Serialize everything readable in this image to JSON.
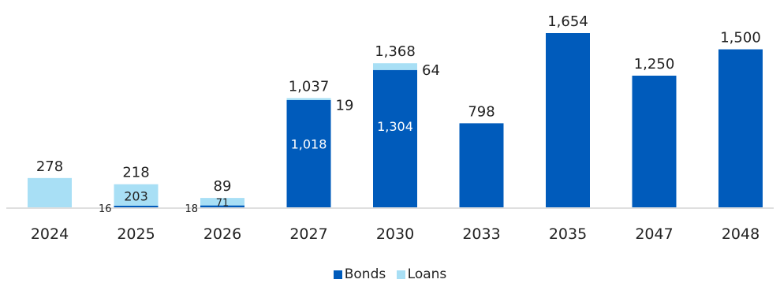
{
  "chart_data": {
    "type": "bar",
    "stacked": true,
    "categories": [
      "2024",
      "2025",
      "2026",
      "2027",
      "2030",
      "2033",
      "2035",
      "2047",
      "2048"
    ],
    "series": [
      {
        "name": "Bonds",
        "color": "#005bbb",
        "values": [
          0,
          16,
          18,
          1018,
          1304,
          798,
          1654,
          1250,
          1500
        ]
      },
      {
        "name": "Loans",
        "color": "#a8dff5",
        "values": [
          278,
          203,
          71,
          19,
          64,
          0,
          0,
          0,
          0
        ]
      }
    ],
    "totals": [
      278,
      218,
      89,
      1037,
      1368,
      798,
      1654,
      1250,
      1500
    ],
    "total_labels": [
      "278",
      "218",
      "89",
      "1,037",
      "1,368",
      "798",
      "1,654",
      "1,250",
      "1,500"
    ],
    "bonds_inner_labels": [
      "",
      "",
      "",
      "1,018",
      "1,304",
      "",
      "",
      "",
      ""
    ],
    "bonds_side_labels": [
      "",
      "16",
      "18",
      "",
      "",
      "",
      "",
      "",
      ""
    ],
    "loans_inner_labels": [
      "",
      "203",
      "71",
      "",
      "",
      "",
      "",
      "",
      ""
    ],
    "loans_side_labels": [
      "",
      "",
      "",
      "19",
      "64",
      "",
      "",
      "",
      ""
    ],
    "ylim": [
      0,
      1654
    ],
    "grid": false,
    "legend_position": "bottom"
  }
}
